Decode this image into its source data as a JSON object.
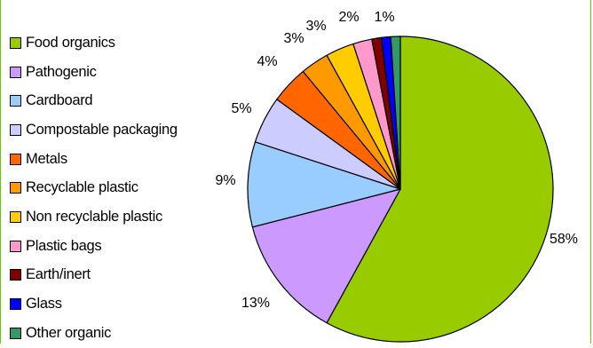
{
  "chart_data": {
    "type": "pie",
    "legend_position": "left",
    "slices": [
      {
        "label": "Food organics",
        "value": 58,
        "value_label": "58%",
        "color": "#99cc00"
      },
      {
        "label": "Pathogenic",
        "value": 13,
        "value_label": "13%",
        "color": "#cc99ff"
      },
      {
        "label": "Cardboard",
        "value": 9,
        "value_label": "9%",
        "color": "#99ccff"
      },
      {
        "label": "Compostable packaging",
        "value": 5,
        "value_label": "5%",
        "color": "#ccccff"
      },
      {
        "label": "Metals",
        "value": 4,
        "value_label": "4%",
        "color": "#ff6600"
      },
      {
        "label": "Recyclable plastic",
        "value": 3,
        "value_label": "3%",
        "color": "#ff9900"
      },
      {
        "label": "Non recyclable plastic",
        "value": 3,
        "value_label": "3%",
        "color": "#ffcc00"
      },
      {
        "label": "Plastic bags",
        "value": 2,
        "value_label": "2%",
        "color": "#ff99cc"
      },
      {
        "label": "Earth/inert",
        "value": 1,
        "value_label": "",
        "color": "#800000"
      },
      {
        "label": "Glass",
        "value": 1,
        "value_label": "1%",
        "color": "#0000ff"
      },
      {
        "label": "Other organic",
        "value": 1,
        "value_label": "",
        "color": "#339966"
      }
    ]
  }
}
